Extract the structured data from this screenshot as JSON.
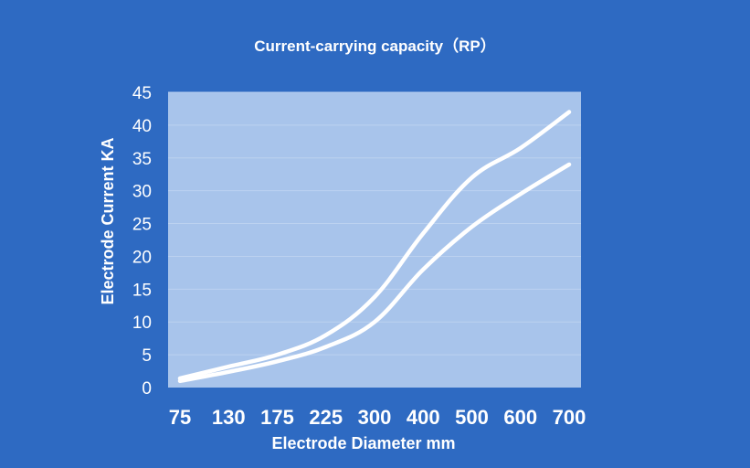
{
  "chart_data": {
    "type": "line",
    "title": "Current-carrying capacity（RP）",
    "xlabel": "Electrode Diameter mm",
    "ylabel": "Electrode Current KA",
    "categories": [
      "75",
      "130",
      "175",
      "225",
      "300",
      "400",
      "500",
      "600",
      "700"
    ],
    "ylim": [
      0,
      45
    ],
    "yticks": [
      "0",
      "5",
      "10",
      "15",
      "20",
      "25",
      "30",
      "35",
      "40",
      "45"
    ],
    "grid": true,
    "legend": "none",
    "series": [
      {
        "values": [
          1.4,
          3.2,
          5.0,
          8.0,
          13.8,
          23.5,
          32.0,
          36.5,
          42.0
        ]
      },
      {
        "values": [
          1.0,
          2.4,
          4.0,
          6.2,
          10.0,
          18.0,
          24.5,
          29.5,
          34.0
        ]
      }
    ],
    "colors": {
      "background": "#2e6ac2",
      "plot_area": "#a8c4eb",
      "line": "#ffffff",
      "grid": "#bcd2f0"
    }
  }
}
